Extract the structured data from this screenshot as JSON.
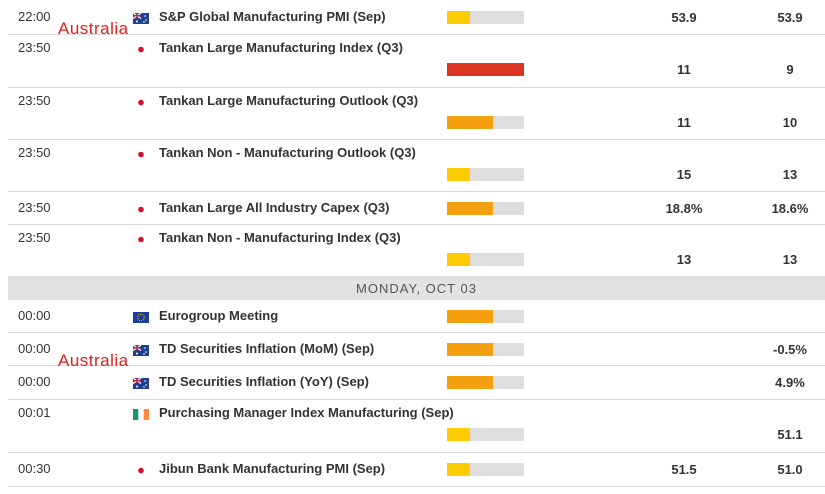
{
  "calendar": {
    "day_header": "MONDAY, OCT 03",
    "rows": [
      {
        "time": "22:00",
        "event": "S&P Global Manufacturing PMI (Sep)",
        "actual": "53.9",
        "forecast": "53.9",
        "annotation": "Australia"
      },
      {
        "time": "23:50",
        "event": "Tankan Large Manufacturing Index (Q3)",
        "actual": "11",
        "forecast": "9"
      },
      {
        "time": "23:50",
        "event": "Tankan Large Manufacturing Outlook (Q3)",
        "actual": "11",
        "forecast": "10"
      },
      {
        "time": "23:50",
        "event": "Tankan Non - Manufacturing Outlook (Q3)",
        "actual": "15",
        "forecast": "13"
      },
      {
        "time": "23:50",
        "event": "Tankan Large All Industry Capex (Q3)",
        "actual": "18.8%",
        "forecast": "18.6%"
      },
      {
        "time": "23:50",
        "event": "Tankan Non - Manufacturing Index (Q3)",
        "actual": "13",
        "forecast": "13"
      },
      {
        "time": "00:00",
        "event": "Eurogroup Meeting",
        "actual": null,
        "forecast": null
      },
      {
        "time": "00:00",
        "event": "TD Securities Inflation (MoM) (Sep)",
        "actual": null,
        "forecast": "-0.5%",
        "annotation": "Australia"
      },
      {
        "time": "00:00",
        "event": "TD Securities Inflation (YoY) (Sep)",
        "actual": null,
        "forecast": "4.9%"
      },
      {
        "time": "00:01",
        "event": "Purchasing Manager Index Manufacturing (Sep)",
        "actual": null,
        "forecast": "51.1"
      },
      {
        "time": "00:30",
        "event": "Jibun Bank Manufacturing PMI (Sep)",
        "actual": "51.5",
        "forecast": "51.0"
      }
    ]
  }
}
